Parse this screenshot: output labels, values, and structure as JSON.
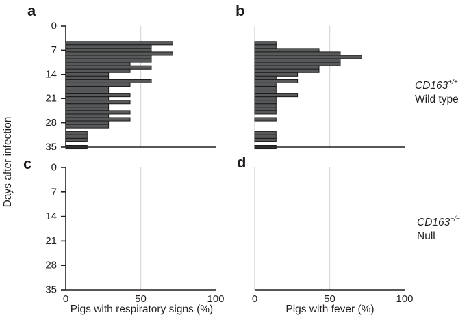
{
  "figure": {
    "background": "#ffffff",
    "bar_fill": "#58595b",
    "bar_stroke": "#1a1a1a",
    "grid_color": "#d9d9d9",
    "axis_color": "#231f20",
    "ylabel": "Days after infection",
    "groups": [
      {
        "gene": "CD163",
        "sup": "+/+",
        "name": "Wild type"
      },
      {
        "gene": "CD163",
        "sup": "−/−",
        "name": "Null"
      }
    ]
  },
  "chart_data": [
    {
      "panel": "a",
      "type": "bar",
      "orientation": "horizontal",
      "group": "CD163+/+ Wild type",
      "xlabel": "Pigs with respiratory signs (%)",
      "ylabel": "Days after infection",
      "xlim": [
        0,
        100
      ],
      "ylim": [
        0,
        35
      ],
      "xticks": [
        0,
        50,
        100
      ],
      "yticks": [
        0,
        7,
        14,
        21,
        28,
        35
      ],
      "gridline_x": 50,
      "days": [
        5,
        6,
        7,
        8,
        9,
        10,
        11,
        12,
        13,
        14,
        15,
        16,
        17,
        18,
        19,
        20,
        21,
        22,
        23,
        24,
        25,
        26,
        27,
        28,
        29,
        31,
        32,
        33,
        35
      ],
      "values": [
        71.4,
        57.1,
        57.1,
        71.4,
        57.1,
        57.1,
        42.9,
        57.1,
        42.9,
        28.6,
        28.6,
        57.1,
        42.9,
        28.6,
        28.6,
        42.9,
        28.6,
        42.9,
        28.6,
        28.6,
        42.9,
        28.6,
        42.9,
        28.6,
        28.6,
        14.3,
        14.3,
        14.3,
        14.3
      ]
    },
    {
      "panel": "b",
      "type": "bar",
      "orientation": "horizontal",
      "group": "CD163+/+ Wild type",
      "xlabel": "Pigs with fever (%)",
      "ylabel": "Days after infection",
      "xlim": [
        0,
        100
      ],
      "ylim": [
        0,
        35
      ],
      "xticks": [
        0,
        50,
        100
      ],
      "yticks": [
        0,
        7,
        14,
        21,
        28,
        35
      ],
      "gridline_x": 50,
      "days": [
        5,
        6,
        7,
        8,
        9,
        10,
        11,
        12,
        13,
        14,
        15,
        16,
        17,
        18,
        19,
        20,
        21,
        22,
        23,
        24,
        25,
        27,
        31,
        32,
        33,
        35
      ],
      "values": [
        14.3,
        14.3,
        42.9,
        57.1,
        71.4,
        57.1,
        57.1,
        42.9,
        42.9,
        28.6,
        14.3,
        28.6,
        14.3,
        14.3,
        14.3,
        28.6,
        14.3,
        14.3,
        14.3,
        14.3,
        14.3,
        14.3,
        14.3,
        14.3,
        14.3,
        14.3
      ]
    },
    {
      "panel": "c",
      "type": "bar",
      "orientation": "horizontal",
      "group": "CD163−/− Null",
      "xlabel": "Pigs with respiratory signs (%)",
      "ylabel": "Days after infection",
      "xlim": [
        0,
        100
      ],
      "ylim": [
        0,
        35
      ],
      "xticks": [
        0,
        50,
        100
      ],
      "yticks": [
        0,
        7,
        14,
        21,
        28,
        35
      ],
      "gridline_x": 50,
      "days": [],
      "values": []
    },
    {
      "panel": "d",
      "type": "bar",
      "orientation": "horizontal",
      "group": "CD163−/− Null",
      "xlabel": "Pigs with fever (%)",
      "ylabel": "Days after infection",
      "xlim": [
        0,
        100
      ],
      "ylim": [
        0,
        35
      ],
      "xticks": [
        0,
        50,
        100
      ],
      "yticks": [
        0,
        7,
        14,
        21,
        28,
        35
      ],
      "gridline_x": 50,
      "days": [],
      "values": []
    }
  ]
}
